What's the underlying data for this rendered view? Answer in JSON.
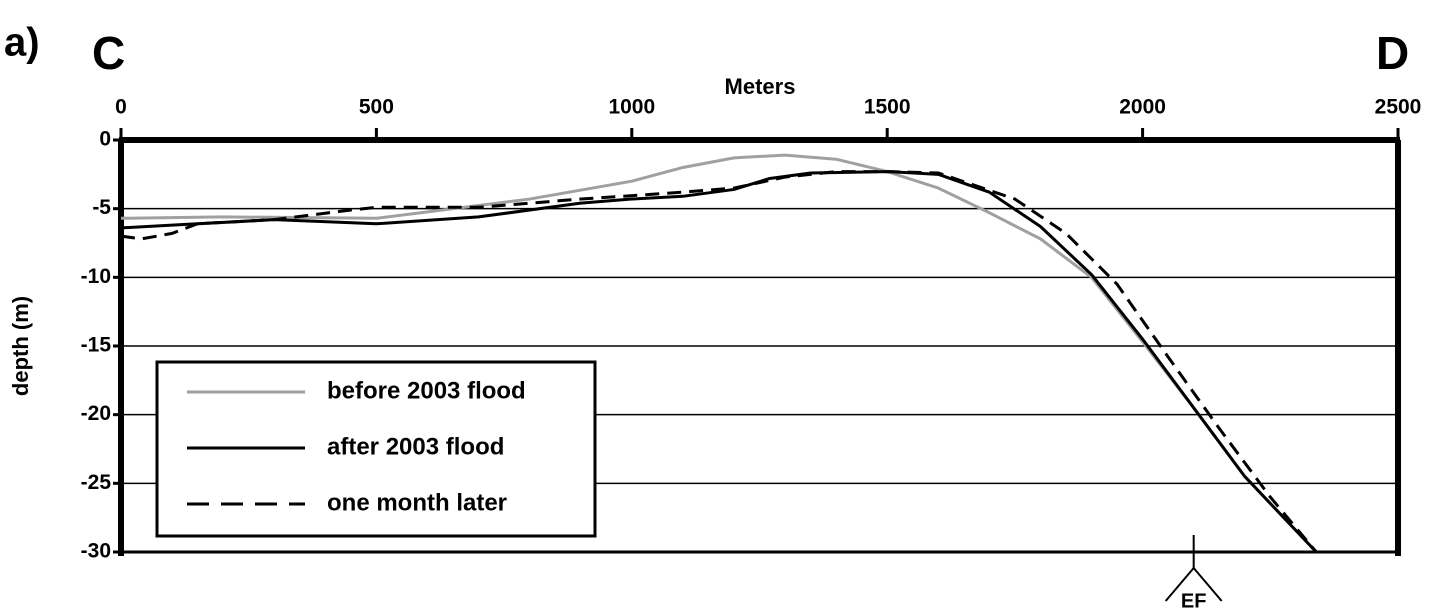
{
  "chart_data": {
    "type": "line",
    "panel_label": "a)",
    "left_label": "C",
    "right_label": "D",
    "xlabel": "Meters",
    "ylabel": "depth (m)",
    "xlim": [
      0,
      2500
    ],
    "xticks": [
      0,
      500,
      1000,
      1500,
      2000,
      2500
    ],
    "ylim": [
      -30,
      0
    ],
    "yticks": [
      0,
      -5,
      -10,
      -15,
      -20,
      -25,
      -30
    ],
    "grid": true,
    "legend": "lower left",
    "series": [
      {
        "name": "before 2003 flood",
        "color": "#a0a0a0",
        "dash": false,
        "x": [
          0,
          200,
          500,
          800,
          1000,
          1100,
          1200,
          1300,
          1400,
          1500,
          1600,
          1700,
          1800,
          1900,
          2000,
          2100,
          2200,
          2340
        ],
        "values": [
          -5.7,
          -5.6,
          -5.7,
          -4.3,
          -3.0,
          -2.0,
          -1.3,
          -1.1,
          -1.4,
          -2.3,
          -3.5,
          -5.3,
          -7.2,
          -10.0,
          -14.7,
          -19.5,
          -24.5,
          -30
        ]
      },
      {
        "name": "after 2003 flood",
        "color": "#000000",
        "dash": false,
        "x": [
          0,
          100,
          300,
          500,
          700,
          900,
          1000,
          1100,
          1200,
          1270,
          1350,
          1500,
          1600,
          1700,
          1800,
          1900,
          2000,
          2100,
          2200,
          2340
        ],
        "values": [
          -6.4,
          -6.2,
          -5.8,
          -6.1,
          -5.6,
          -4.6,
          -4.3,
          -4.1,
          -3.6,
          -2.8,
          -2.4,
          -2.3,
          -2.5,
          -3.8,
          -6.3,
          -9.8,
          -14.5,
          -19.5,
          -24.5,
          -30
        ]
      },
      {
        "name": "one month later",
        "color": "#000000",
        "dash": true,
        "x": [
          0,
          40,
          100,
          150,
          300,
          450,
          500,
          700,
          900,
          1100,
          1200,
          1300,
          1400,
          1500,
          1600,
          1750,
          1850,
          1950,
          2050,
          2150,
          2250,
          2340
        ],
        "values": [
          -7.0,
          -7.2,
          -6.8,
          -6.1,
          -5.8,
          -5.1,
          -4.9,
          -4.9,
          -4.3,
          -3.8,
          -3.5,
          -2.7,
          -2.3,
          -2.3,
          -2.4,
          -4.3,
          -6.8,
          -10.5,
          -15.8,
          -21.0,
          -26.0,
          -30
        ]
      }
    ],
    "annotations": [
      {
        "text": "EF",
        "x": 2100
      }
    ]
  }
}
